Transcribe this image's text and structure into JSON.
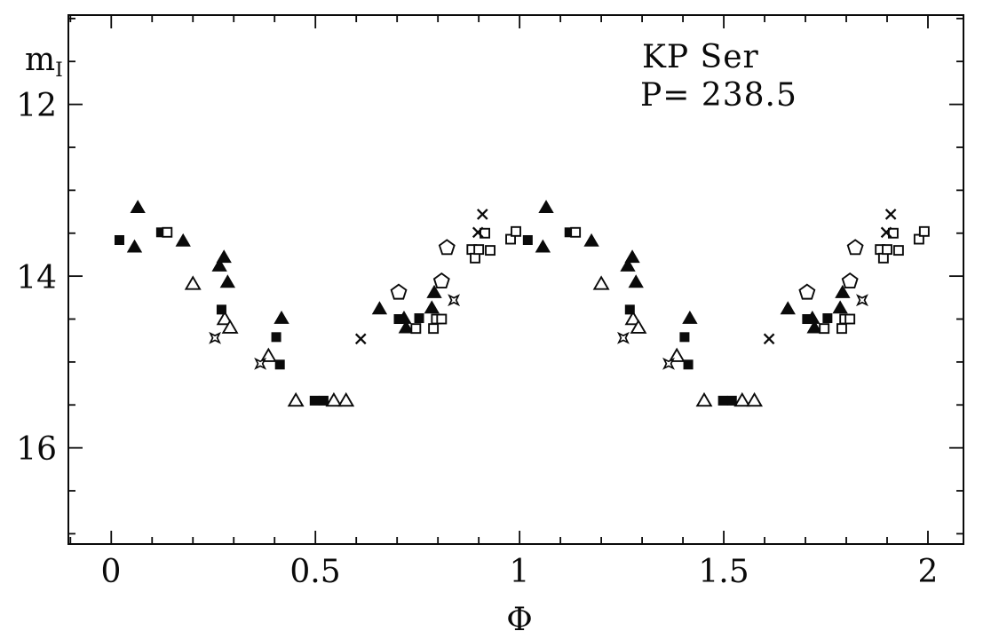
{
  "figure": {
    "background": "#ffffff",
    "ink_color": "#0a0a0a",
    "title": "KP Ser",
    "period_annotation": "P= 238.5",
    "x_axis_label": "Φ",
    "y_axis_label_base": "m",
    "y_axis_label_subscript": "I"
  },
  "chart_data": {
    "type": "scatter",
    "title": "KP Ser",
    "annotation": "P= 238.5",
    "xlabel": "Φ",
    "ylabel": "m_I",
    "x_axis_range": [
      -0.105,
      2.087
    ],
    "y_axis_top_mag": 10.96,
    "y_axis_bottom_mag": 17.12,
    "y_axis_inverted": true,
    "grid": false,
    "legend_position": "none",
    "x_major_ticks": [
      0,
      0.5,
      1,
      1.5,
      2
    ],
    "x_tick_labels": [
      "0",
      "0.5",
      "1",
      "1.5",
      "2"
    ],
    "x_minor_tick_step": 0.1,
    "y_major_ticks": [
      12,
      14,
      16
    ],
    "y_tick_labels": [
      "12",
      "14",
      "16"
    ],
    "y_minor_tick_step": 0.5,
    "phase_duplication_offset": 1.0,
    "note": "Phase-folded light curve; every observation (phase 0-1) is replotted at phase+1 to show two cycles.",
    "series": [
      {
        "name": "filled-triangle",
        "marker": "filled-triangle",
        "points": [
          [
            0.057,
            13.66
          ],
          [
            0.065,
            13.2
          ],
          [
            0.176,
            13.59
          ],
          [
            0.265,
            13.88
          ],
          [
            0.276,
            13.78
          ],
          [
            0.285,
            14.07
          ],
          [
            0.417,
            14.49
          ],
          [
            0.657,
            14.38
          ],
          [
            0.717,
            14.49
          ],
          [
            0.722,
            14.6
          ],
          [
            0.785,
            14.37
          ],
          [
            0.791,
            14.19
          ]
        ]
      },
      {
        "name": "open-triangle",
        "marker": "open-triangle",
        "points": [
          [
            0.2,
            14.09
          ],
          [
            0.278,
            14.5
          ],
          [
            0.291,
            14.6
          ],
          [
            0.385,
            14.93
          ],
          [
            0.452,
            15.45
          ],
          [
            0.545,
            15.45
          ],
          [
            0.575,
            15.45
          ]
        ]
      },
      {
        "name": "filled-square",
        "marker": "filled-square",
        "points": [
          [
            0.02,
            13.58
          ],
          [
            0.122,
            13.49
          ],
          [
            0.27,
            14.39
          ],
          [
            0.404,
            14.71
          ],
          [
            0.413,
            15.03
          ],
          [
            0.498,
            15.45
          ],
          [
            0.52,
            15.45
          ],
          [
            0.704,
            14.5
          ],
          [
            0.754,
            14.49
          ]
        ]
      },
      {
        "name": "open-square",
        "marker": "open-square",
        "points": [
          [
            0.137,
            13.49
          ],
          [
            0.746,
            14.61
          ],
          [
            0.789,
            14.61
          ],
          [
            0.796,
            14.5
          ],
          [
            0.809,
            14.5
          ],
          [
            0.883,
            13.69
          ],
          [
            0.891,
            13.79
          ],
          [
            0.9,
            13.69
          ],
          [
            0.915,
            13.5
          ],
          [
            0.928,
            13.7
          ],
          [
            0.978,
            13.57
          ],
          [
            0.991,
            13.48
          ]
        ]
      },
      {
        "name": "cross",
        "marker": "cross",
        "points": [
          [
            0.611,
            14.73
          ],
          [
            0.898,
            13.49
          ],
          [
            0.909,
            13.28
          ]
        ]
      },
      {
        "name": "open-pentagon",
        "marker": "open-pentagon",
        "points": [
          [
            0.704,
            14.19
          ],
          [
            0.809,
            14.06
          ],
          [
            0.822,
            13.67
          ]
        ]
      },
      {
        "name": "open-star4",
        "marker": "open-star4",
        "points": [
          [
            0.254,
            14.72
          ],
          [
            0.365,
            15.02
          ],
          [
            0.839,
            14.28
          ]
        ]
      }
    ]
  }
}
